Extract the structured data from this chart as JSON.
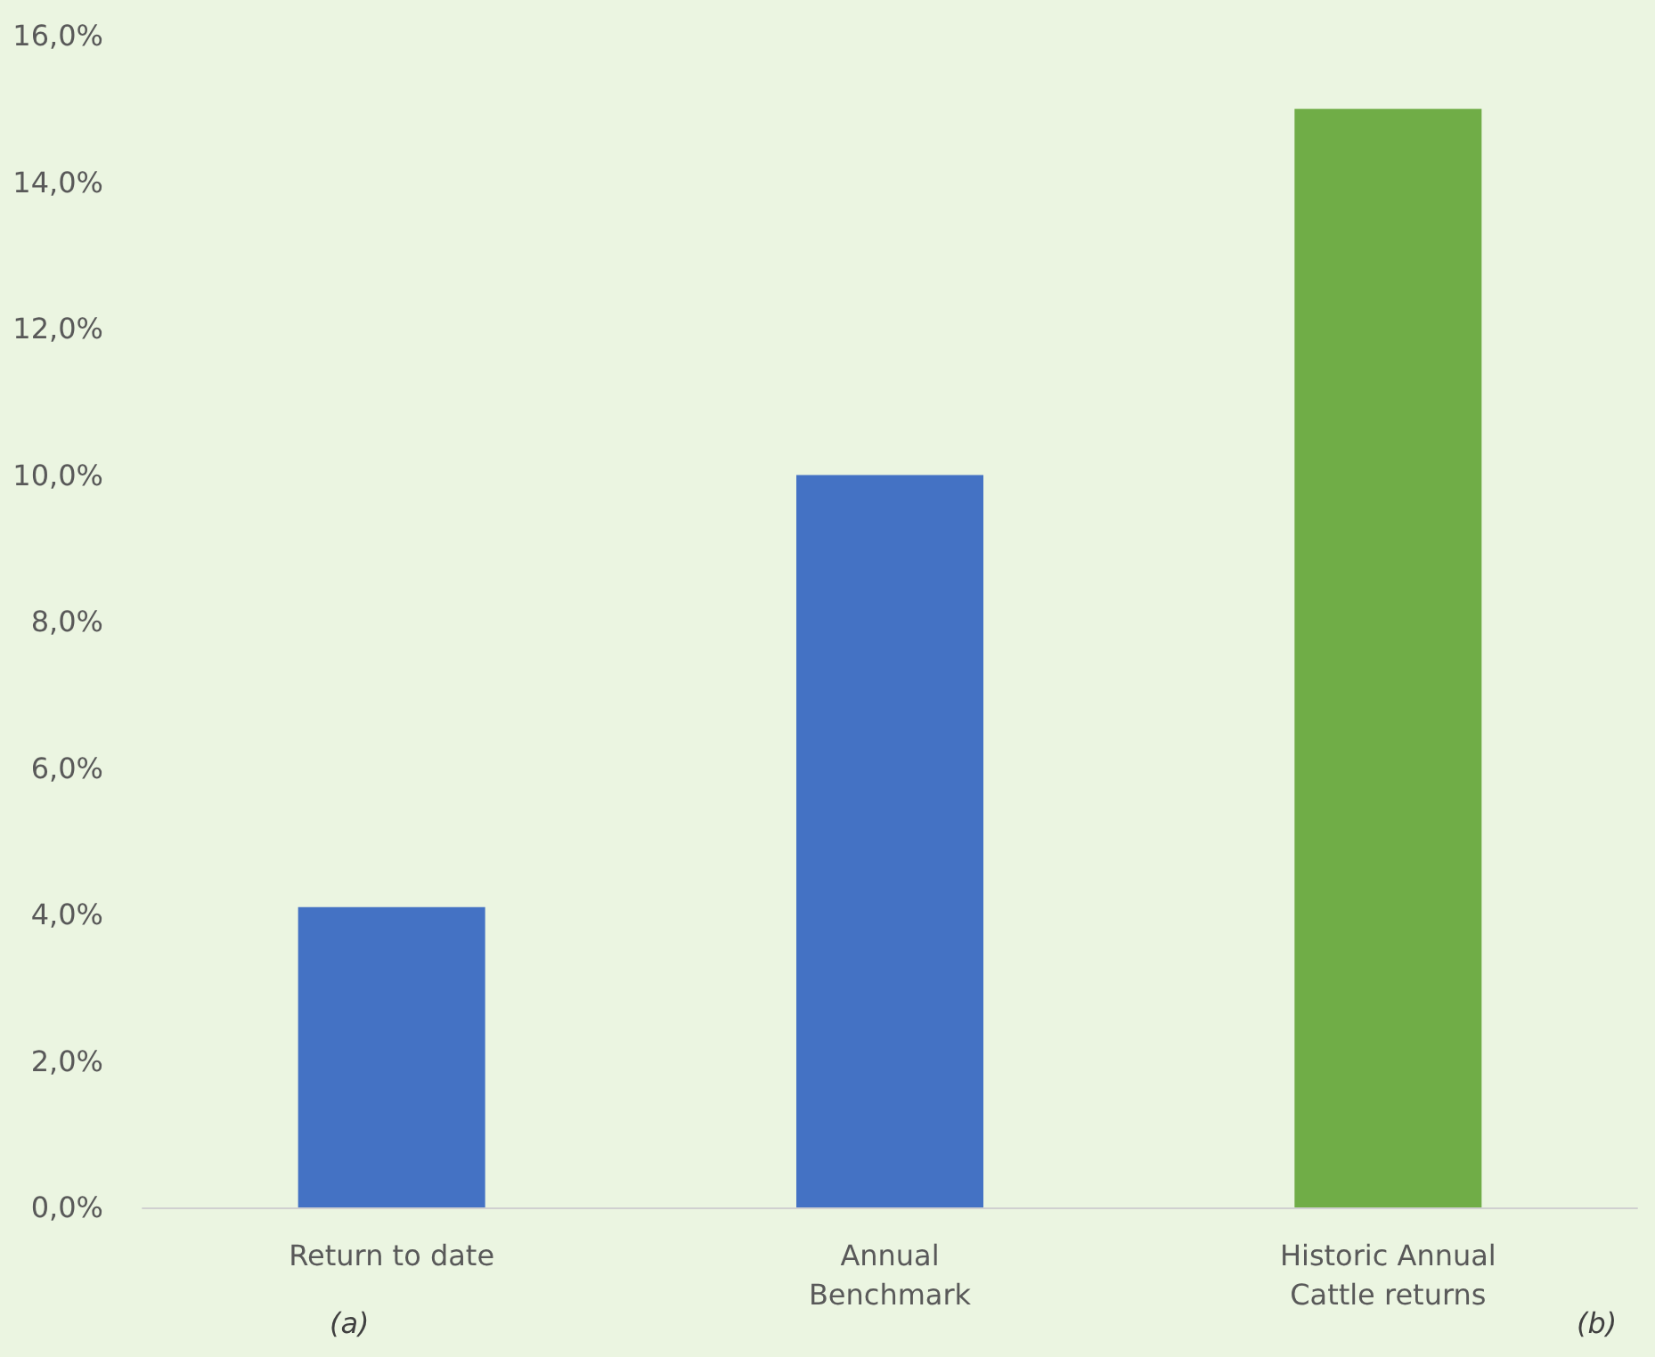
{
  "chart_data": {
    "type": "bar",
    "categories": [
      "Return to date",
      "Annual Benchmark",
      "Historic Annual Cattle returns"
    ],
    "values": [
      4.1,
      10.0,
      15.0
    ],
    "colors": [
      "#4472c4",
      "#4472c4",
      "#70ad47"
    ],
    "ylim": [
      0,
      16
    ],
    "yticks": [
      {
        "value": 0,
        "label": "0,0%"
      },
      {
        "value": 2,
        "label": "2,0%"
      },
      {
        "value": 4,
        "label": "4,0%"
      },
      {
        "value": 6,
        "label": "6,0%"
      },
      {
        "value": 8,
        "label": "8,0%"
      },
      {
        "value": 10,
        "label": "10,0%"
      },
      {
        "value": 12,
        "label": "12,0%"
      },
      {
        "value": 14,
        "label": "14,0%"
      },
      {
        "value": 16,
        "label": "16,0%"
      }
    ],
    "grid": false,
    "annotations": [
      "(a)",
      "(b)"
    ]
  }
}
